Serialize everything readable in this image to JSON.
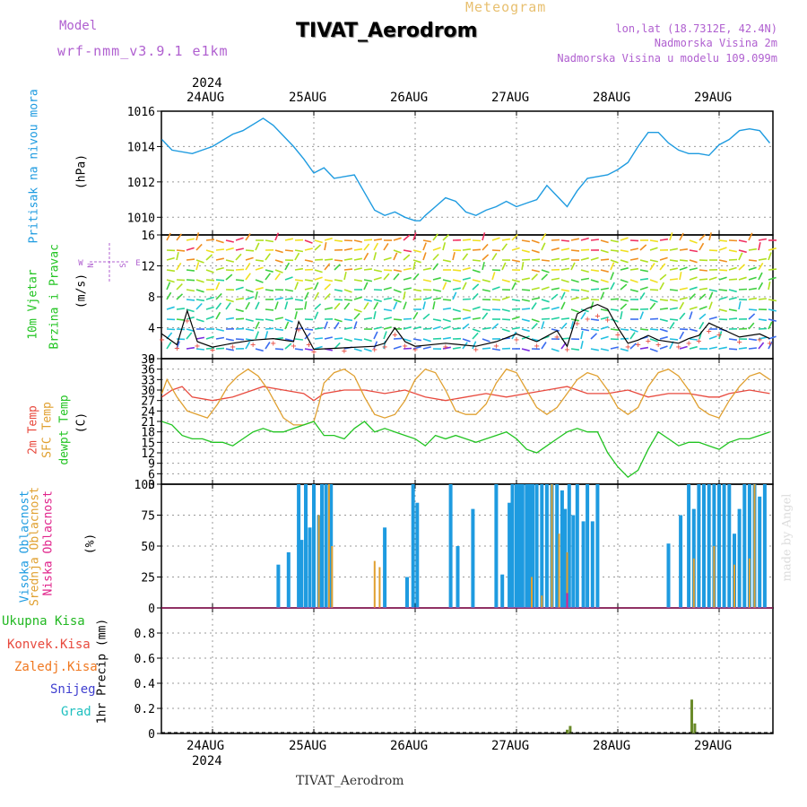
{
  "header": {
    "model_label": "Model",
    "model_name": "wrf-nmm_v3.9.1 e1km",
    "product": "Meteogram",
    "station": "TIVAT_Aerodrom",
    "lonlat": "lon,lat (18.7312E, 42.4N)",
    "elevation": "Nadmorska Visina 2m",
    "model_elevation": "Nadmorska Visina u modelu 109.099m",
    "footer_station": "TIVAT_Aerodrom",
    "watermark": "made by Angel"
  },
  "colors": {
    "pressure": "#1e9be0",
    "temp2m": "#e84a3e",
    "sfc": "#e0a030",
    "dew": "#22c422",
    "high": "#1e9be0",
    "mid": "#e0a030",
    "low": "#e0228a",
    "totalPrecip": "#22b822",
    "convPrecip": "#e84a3e",
    "frzPrecip": "#f07820",
    "snow": "#4040d0",
    "hail": "#20c0c0",
    "precipBar": "#6a8a2a"
  },
  "labels": {
    "pressure": [
      "Pritisak na nivou mora",
      "(hPa)"
    ],
    "wind": [
      "10m Vjetar",
      "Brzina i Pravac",
      "(m/s)"
    ],
    "compass": {
      "n": "N",
      "w": "W",
      "e": "E",
      "s": "S"
    },
    "temp": [
      "2m Temp",
      "SFC Temp",
      "dewpt Temp",
      "(C)"
    ],
    "cloud": [
      "Visoka Oblacnost",
      "Srednja Oblacnost",
      "Niska Oblacnost",
      "(%)"
    ],
    "precip": [
      "Ukupna Kisa",
      "Konvek.Kisa",
      "Zaledj.Kisa",
      "Snijeg",
      "Grad",
      "1hr Precip (mm)"
    ]
  },
  "chart_data": [
    {
      "type": "line",
      "ylabel": "(hPa)",
      "ylim": [
        1009,
        1016
      ],
      "yticks": [
        "1010",
        "1012",
        "1014",
        "1016"
      ],
      "x_dates": [
        "24AUG",
        "25AUG",
        "26AUG",
        "27AUG",
        "28AUG",
        "29AUG"
      ],
      "x_year": "2024",
      "grid": true,
      "series": [
        {
          "name": "Pritisak na nivou mora",
          "x": [
            -0.5,
            -0.4,
            -0.2,
            0,
            0.2,
            0.3,
            0.5,
            0.6,
            0.8,
            0.9,
            1.0,
            1.1,
            1.2,
            1.4,
            1.5,
            1.6,
            1.7,
            1.8,
            1.9,
            2.0,
            2.05,
            2.1,
            2.2,
            2.3,
            2.4,
            2.5,
            2.6,
            2.7,
            2.8,
            2.9,
            3.0,
            3.1,
            3.2,
            3.3,
            3.4,
            3.5,
            3.6,
            3.7,
            3.8,
            3.9,
            4.0,
            4.1,
            4.2,
            4.3,
            4.4,
            4.5,
            4.6,
            4.7,
            4.8,
            4.9,
            5.0,
            5.1,
            5.2,
            5.3,
            5.4,
            5.5
          ],
          "values": [
            1014.4,
            1013.8,
            1013.6,
            1014.0,
            1014.7,
            1014.9,
            1015.6,
            1015.2,
            1014.0,
            1013.3,
            1012.5,
            1012.8,
            1012.2,
            1012.4,
            1011.4,
            1010.4,
            1010.1,
            1010.3,
            1010.0,
            1009.8,
            1009.8,
            1010.1,
            1010.6,
            1011.1,
            1010.9,
            1010.3,
            1010.1,
            1010.4,
            1010.6,
            1010.9,
            1010.6,
            1010.8,
            1011.0,
            1011.8,
            1011.2,
            1010.6,
            1011.5,
            1012.2,
            1012.3,
            1012.4,
            1012.7,
            1013.1,
            1014.0,
            1014.8,
            1014.8,
            1014.2,
            1013.8,
            1013.6,
            1013.6,
            1013.5,
            1014.1,
            1014.4,
            1014.9,
            1015.0,
            1014.9,
            1014.2
          ]
        }
      ]
    },
    {
      "type": "scatter",
      "ylabel": "(m/s)",
      "ylim": [
        0,
        16
      ],
      "yticks": [
        "0",
        "4",
        "8",
        "12",
        "16"
      ],
      "grid": true,
      "series": [
        {
          "name": "speed",
          "x": [
            -0.5,
            -0.35,
            -0.25,
            -0.15,
            0,
            0.2,
            0.4,
            0.6,
            0.8,
            0.85,
            0.95,
            1.0,
            1.3,
            1.6,
            1.7,
            1.8,
            1.9,
            2.0,
            2.3,
            2.6,
            2.8,
            3.0,
            3.2,
            3.4,
            3.5,
            3.6,
            3.7,
            3.8,
            3.9,
            4.0,
            4.1,
            4.2,
            4.3,
            4.4,
            4.6,
            4.7,
            4.8,
            4.9,
            5.0,
            5.2,
            5.4,
            5.5
          ],
          "values": [
            3.2,
            1.8,
            6.2,
            2.2,
            1.5,
            2.0,
            2.4,
            2.6,
            2.2,
            4.8,
            2.4,
            1.2,
            1.4,
            1.6,
            2.0,
            4.0,
            2.2,
            1.6,
            2.0,
            1.6,
            2.2,
            3.2,
            2.2,
            3.6,
            1.6,
            5.8,
            6.5,
            7.0,
            6.4,
            4.0,
            2.0,
            2.4,
            3.0,
            2.4,
            2.0,
            2.6,
            3.0,
            4.6,
            4.0,
            2.8,
            3.2,
            2.6
          ]
        }
      ]
    },
    {
      "type": "line",
      "ylabel": "(C)",
      "ylim": [
        3,
        39
      ],
      "yticks": [
        "3",
        "6",
        "9",
        "12",
        "15",
        "18",
        "21",
        "24",
        "27",
        "30",
        "33",
        "36",
        "39"
      ],
      "grid": true,
      "series": [
        {
          "name": "2m Temp",
          "x": [
            -0.5,
            -0.4,
            -0.3,
            -0.2,
            0,
            0.2,
            0.4,
            0.5,
            0.7,
            0.9,
            1.0,
            1.1,
            1.3,
            1.5,
            1.7,
            1.9,
            2.1,
            2.3,
            2.5,
            2.7,
            2.9,
            3.1,
            3.3,
            3.5,
            3.7,
            3.9,
            4.1,
            4.3,
            4.5,
            4.7,
            4.9,
            5.0,
            5.1,
            5.3,
            5.5
          ],
          "values": [
            28,
            30,
            31,
            28,
            27,
            28,
            30,
            31,
            30,
            29,
            27,
            29,
            30,
            30,
            29,
            30,
            28,
            27,
            28,
            29,
            28,
            29,
            30,
            31,
            29,
            29,
            30,
            28,
            29,
            29,
            28,
            28,
            29,
            30,
            29
          ]
        },
        {
          "name": "SFC Temp",
          "x": [
            -0.5,
            -0.45,
            -0.35,
            -0.25,
            -0.15,
            -0.05,
            0.05,
            0.15,
            0.25,
            0.35,
            0.45,
            0.55,
            0.7,
            0.8,
            0.9,
            1.0,
            1.05,
            1.1,
            1.2,
            1.3,
            1.4,
            1.5,
            1.6,
            1.7,
            1.8,
            1.9,
            2.0,
            2.1,
            2.2,
            2.3,
            2.4,
            2.5,
            2.6,
            2.7,
            2.8,
            2.9,
            3.0,
            3.1,
            3.2,
            3.3,
            3.4,
            3.5,
            3.6,
            3.7,
            3.8,
            3.9,
            4.0,
            4.1,
            4.2,
            4.3,
            4.4,
            4.5,
            4.6,
            4.7,
            4.8,
            4.9,
            5.0,
            5.1,
            5.2,
            5.3,
            5.4,
            5.5
          ],
          "values": [
            29,
            33,
            28,
            24,
            23,
            22,
            26,
            31,
            34,
            36,
            34,
            30,
            22,
            20,
            20,
            21,
            26,
            32,
            35,
            36,
            34,
            28,
            23,
            22,
            23,
            27,
            33,
            36,
            35,
            30,
            24,
            23,
            23,
            26,
            32,
            36,
            35,
            30,
            25,
            23,
            25,
            29,
            33,
            35,
            34,
            30,
            25,
            23,
            25,
            31,
            35,
            36,
            34,
            30,
            25,
            23,
            22,
            27,
            31,
            34,
            35,
            33
          ]
        },
        {
          "name": "dewpt Temp",
          "x": [
            -0.5,
            -0.4,
            -0.3,
            -0.2,
            -0.1,
            0,
            0.1,
            0.2,
            0.3,
            0.4,
            0.5,
            0.6,
            0.7,
            0.8,
            0.9,
            1.0,
            1.1,
            1.2,
            1.3,
            1.4,
            1.5,
            1.6,
            1.7,
            1.8,
            1.9,
            2.0,
            2.1,
            2.2,
            2.3,
            2.4,
            2.5,
            2.6,
            2.7,
            2.8,
            2.9,
            3.0,
            3.1,
            3.2,
            3.3,
            3.4,
            3.5,
            3.6,
            3.7,
            3.8,
            3.9,
            4.0,
            4.1,
            4.2,
            4.3,
            4.4,
            4.5,
            4.6,
            4.7,
            4.8,
            4.9,
            5.0,
            5.1,
            5.2,
            5.3,
            5.4,
            5.5
          ],
          "values": [
            21,
            20,
            17,
            16,
            16,
            15,
            15,
            14,
            16,
            18,
            19,
            18,
            18,
            19,
            20,
            21,
            17,
            17,
            16,
            19,
            21,
            18,
            19,
            18,
            17,
            16,
            14,
            17,
            16,
            17,
            16,
            15,
            16,
            17,
            18,
            16,
            13,
            12,
            14,
            16,
            18,
            19,
            18,
            18,
            12,
            8,
            5,
            7,
            13,
            18,
            16,
            14,
            15,
            15,
            14,
            13,
            15,
            16,
            16,
            17,
            18
          ]
        }
      ]
    },
    {
      "type": "bar",
      "ylabel": "(%)",
      "ylim": [
        0,
        100
      ],
      "yticks": [
        "0",
        "25",
        "50",
        "75",
        "100"
      ],
      "grid": true,
      "series": [
        {
          "name": "Visoka Oblacnost",
          "x": [
            0.6,
            0.65,
            0.75,
            0.85,
            0.88,
            0.92,
            0.96,
            1.0,
            1.05,
            1.08,
            1.12,
            1.17,
            1.7,
            1.92,
            1.98,
            2.02,
            2.35,
            2.42,
            2.57,
            2.7,
            2.8,
            2.86,
            2.93,
            2.96,
            3.0,
            3.03,
            3.06,
            3.1,
            3.13,
            3.16,
            3.2,
            3.25,
            3.3,
            3.35,
            3.4,
            3.45,
            3.48,
            3.52,
            3.56,
            3.6,
            3.66,
            3.7,
            3.75,
            3.8,
            4.5,
            4.62,
            4.7,
            4.75,
            4.8,
            4.85,
            4.9,
            4.95,
            5.0,
            5.05,
            5.1,
            5.15,
            5.2,
            5.25,
            5.3,
            5.35,
            5.4,
            5.45
          ],
          "values": [
            2,
            35,
            45,
            100,
            55,
            100,
            65,
            100,
            75,
            100,
            100,
            100,
            65,
            25,
            100,
            85,
            100,
            50,
            80,
            3,
            100,
            27,
            85,
            100,
            100,
            100,
            100,
            100,
            100,
            100,
            100,
            100,
            100,
            100,
            100,
            95,
            80,
            100,
            75,
            100,
            70,
            100,
            70,
            100,
            52,
            75,
            100,
            80,
            100,
            100,
            100,
            100,
            100,
            100,
            100,
            60,
            80,
            100,
            100,
            100,
            90,
            100
          ]
        },
        {
          "name": "Srednja Oblacnost",
          "x": [
            1.05,
            1.15,
            1.18,
            1.6,
            1.65,
            2.4,
            3.15,
            3.25,
            3.35,
            3.42,
            3.5,
            4.75,
            4.95,
            5.15,
            5.3,
            5.35
          ],
          "values": [
            75,
            100,
            50,
            38,
            33,
            5,
            25,
            10,
            100,
            60,
            45,
            40,
            50,
            35,
            40,
            100
          ]
        },
        {
          "name": "Niska Oblacnost",
          "x": [
            3.5
          ],
          "values": [
            12
          ]
        }
      ]
    },
    {
      "type": "bar",
      "ylabel": "1hr Precip (mm)",
      "ylim": [
        0,
        1
      ],
      "yticks": [
        "0",
        "0.2",
        "0.4",
        "0.6",
        "0.8"
      ],
      "grid": true,
      "series": [
        {
          "name": "Ukupna Kisa",
          "x": [
            3.5,
            3.53,
            4.73,
            4.76
          ],
          "values": [
            0.03,
            0.06,
            0.27,
            0.08
          ]
        }
      ]
    }
  ]
}
